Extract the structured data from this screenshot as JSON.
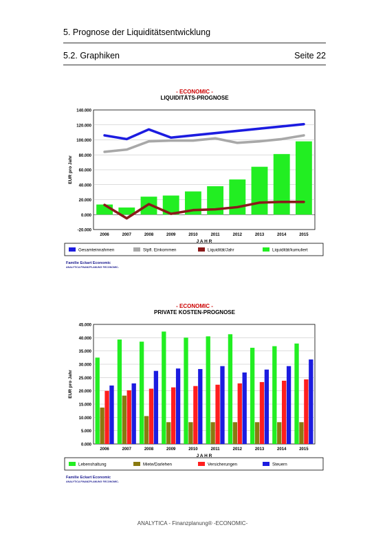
{
  "header": {
    "section_title": "5. Prognose der Liquiditätsentwicklung",
    "subsection_title": "5.2. Graphiken",
    "page_label": "Seite 22"
  },
  "footer": {
    "text": "ANALYTICA - Finanzplanung® -ECONOMIC-"
  },
  "chart_data": [
    {
      "type": "bar",
      "title": "- ECONOMIC -",
      "subtitle": "LIQUIDITÄTS-PROGNOSE",
      "xlabel": "J A H R",
      "ylabel": "EUR pro Jahr",
      "ylim": [
        -20000,
        140000
      ],
      "yticks": [
        "140.000",
        "120.000",
        "100.000",
        "80.000",
        "60.000",
        "40.000",
        "20.000",
        "0.000",
        "-20.000"
      ],
      "categories": [
        "2006",
        "2007",
        "2008",
        "2009",
        "2010",
        "2011",
        "2012",
        "2013",
        "2014",
        "2015"
      ],
      "grid": true,
      "legend_position": "bottom",
      "series": [
        {
          "name": "Gesamteinnahmen",
          "type": "line",
          "color": "#1c1ce0",
          "values": [
            106000,
            101000,
            114000,
            103000,
            106000,
            109000,
            112000,
            115000,
            118000,
            121000
          ]
        },
        {
          "name": "Stpfl. Einkommen",
          "type": "line",
          "color": "#a8a8a8",
          "values": [
            84000,
            87000,
            98000,
            99000,
            99000,
            102000,
            96000,
            98000,
            101000,
            106000
          ]
        },
        {
          "name": "Liquidität/Jahr",
          "type": "line",
          "color": "#8b1a1a",
          "values": [
            13000,
            -5000,
            14000,
            1000,
            6000,
            7000,
            10000,
            16000,
            17000,
            17000
          ]
        },
        {
          "name": "Liquidität/kumuliert",
          "type": "bar",
          "color": "#22ee22",
          "values": [
            13500,
            9500,
            24000,
            25500,
            31000,
            38000,
            47000,
            64000,
            81000,
            98000
          ]
        }
      ],
      "credit_line1": "Familie Eckart Economic",
      "credit_line2": "ANALYTICA FINANZPLANUNG ®ECONOMIC-"
    },
    {
      "type": "bar",
      "title": "- ECONOMIC -",
      "subtitle": "PRIVATE KOSTEN-PROGNOSE",
      "xlabel": "J A H R",
      "ylabel": "EUR pro Jahr",
      "ylim": [
        0,
        45000
      ],
      "yticks": [
        "45.000",
        "40.000",
        "35.000",
        "30.000",
        "25.000",
        "20.000",
        "15.000",
        "10.000",
        "5.000",
        "0.000"
      ],
      "categories": [
        "2006",
        "2007",
        "2008",
        "2009",
        "2010",
        "2011",
        "2012",
        "2013",
        "2014",
        "2015"
      ],
      "grid": true,
      "legend_position": "bottom",
      "series": [
        {
          "name": "Lebenshaltung",
          "color": "#22ee22",
          "values": [
            32500,
            39300,
            38500,
            42300,
            40000,
            40500,
            41300,
            36200,
            36800,
            37800
          ]
        },
        {
          "name": "Miete/Darlehen",
          "color": "#8a7a10",
          "values": [
            13700,
            18200,
            10500,
            8200,
            8200,
            8200,
            8200,
            8200,
            8200,
            8200
          ]
        },
        {
          "name": "Versicherungen",
          "color": "#ff1e1e",
          "values": [
            20000,
            20200,
            20800,
            21300,
            21800,
            22300,
            22800,
            23300,
            23800,
            24300
          ]
        },
        {
          "name": "Steuern",
          "color": "#1c1ce0",
          "values": [
            22000,
            22800,
            27500,
            28400,
            28200,
            29300,
            26900,
            28000,
            29300,
            31800
          ]
        }
      ],
      "credit_line1": "Familie Eckart Economic",
      "credit_line2": "ANALYTICA FINANZPLANUNG ®ECONOMIC-"
    }
  ]
}
